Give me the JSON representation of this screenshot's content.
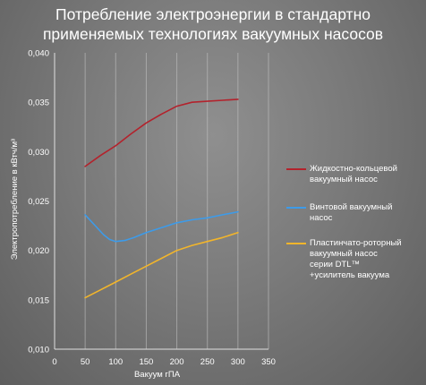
{
  "chart_data": {
    "type": "line",
    "title_lines": [
      "Потребление электроэнергии в стандартно",
      "применяемых технологиях вакуумных насосов"
    ],
    "xlabel": "Вакуум гПА",
    "ylabel": "Электропотребление в кВтч/м³",
    "xlim": [
      0,
      350
    ],
    "ylim": [
      0.01,
      0.04
    ],
    "x_ticks": [
      "0",
      "50",
      "100",
      "150",
      "200",
      "250",
      "300",
      "350"
    ],
    "y_ticks": [
      "0,010",
      "0,015",
      "0,020",
      "0,025",
      "0,030",
      "0,035",
      "0,040"
    ],
    "grid": "x-axis vertical lines at ticks",
    "legend_placement": "right",
    "series": [
      {
        "name": "Жидкостно-кольцевой\nвакуумный насос",
        "color": "#b3222c",
        "x": [
          50,
          75,
          100,
          125,
          150,
          175,
          200,
          225,
          250,
          275,
          300
        ],
        "y": [
          0.0285,
          0.0296,
          0.0306,
          0.0318,
          0.0329,
          0.0338,
          0.0346,
          0.035,
          0.0351,
          0.0352,
          0.0353
        ]
      },
      {
        "name": "Винтовой вакуумный\nнасос",
        "color": "#3d9be9",
        "x": [
          50,
          65,
          80,
          90,
          100,
          115,
          130,
          150,
          175,
          200,
          225,
          250,
          275,
          300
        ],
        "y": [
          0.0236,
          0.0226,
          0.0216,
          0.0211,
          0.0209,
          0.021,
          0.0213,
          0.0218,
          0.0223,
          0.0228,
          0.0231,
          0.0233,
          0.0236,
          0.0239
        ]
      },
      {
        "name": "Пластинчато-роторный\nвакуумный насос\nсерии DTL™\n+усилитель вакуума",
        "color": "#f2b52b",
        "x": [
          50,
          75,
          100,
          125,
          150,
          175,
          200,
          225,
          250,
          275,
          300
        ],
        "y": [
          0.0152,
          0.016,
          0.0168,
          0.0176,
          0.0184,
          0.0192,
          0.02,
          0.0205,
          0.0209,
          0.0213,
          0.0218
        ]
      }
    ]
  }
}
